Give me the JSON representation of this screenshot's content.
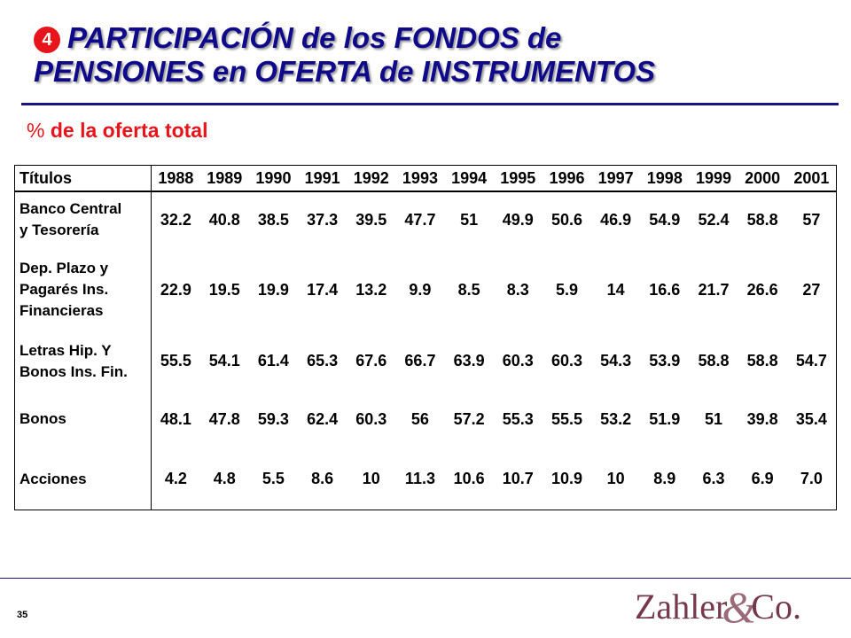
{
  "header": {
    "bullet": "4",
    "title_line1": "PARTICIPACIÓN de los FONDOS de",
    "title_line2": "PENSIONES en OFERTA de  INSTRUMENTOS"
  },
  "subtitle": {
    "percent": "%",
    "text": " de la oferta total"
  },
  "table": {
    "label_header": "Títulos",
    "years": [
      "1988",
      "1989",
      "1990",
      "1991",
      "1992",
      "1993",
      "1994",
      "1995",
      "1996",
      "1997",
      "1998",
      "1999",
      "2000",
      "2001"
    ],
    "rows": [
      {
        "label_lines": [
          "Banco Central",
          "y Tesorería"
        ],
        "values": [
          "32.2",
          "40.8",
          "38.5",
          "37.3",
          "39.5",
          "47.7",
          "51",
          "49.9",
          "50.6",
          "46.9",
          "54.9",
          "52.4",
          "58.8",
          "57"
        ]
      },
      {
        "label_lines": [
          "Dep. Plazo y",
          "Pagarés Ins.",
          "Financieras"
        ],
        "values": [
          "22.9",
          "19.5",
          "19.9",
          "17.4",
          "13.2",
          "9.9",
          "8.5",
          "8.3",
          "5.9",
          "14",
          "16.6",
          "21.7",
          "26.6",
          "27"
        ]
      },
      {
        "label_lines": [
          "Letras Hip. Y",
          "Bonos Ins. Fin."
        ],
        "values": [
          "55.5",
          "54.1",
          "61.4",
          "65.3",
          "67.6",
          "66.7",
          "63.9",
          "60.3",
          "60.3",
          "54.3",
          "53.9",
          "58.8",
          "58.8",
          "54.7"
        ]
      },
      {
        "label_lines": [
          "Bonos"
        ],
        "values": [
          "48.1",
          "47.8",
          "59.3",
          "62.4",
          "60.3",
          "56",
          "57.2",
          "55.3",
          "55.5",
          "53.2",
          "51.9",
          "51",
          "39.8",
          "35.4"
        ]
      },
      {
        "label_lines": [
          "Acciones"
        ],
        "values": [
          "4.2",
          "4.8",
          "5.5",
          "8.6",
          "10",
          "11.3",
          "10.6",
          "10.7",
          "10.9",
          "10",
          "8.9",
          "6.3",
          "6.9",
          "7.0"
        ]
      }
    ]
  },
  "footer": {
    "page_number": "35",
    "logo_part1": "Zahler",
    "logo_amp": "&",
    "logo_part2": "Co."
  },
  "colors": {
    "title": "#0f0a8a",
    "accent_red": "#e8141b",
    "rule": "#1a1480",
    "logo": "#74394a"
  }
}
